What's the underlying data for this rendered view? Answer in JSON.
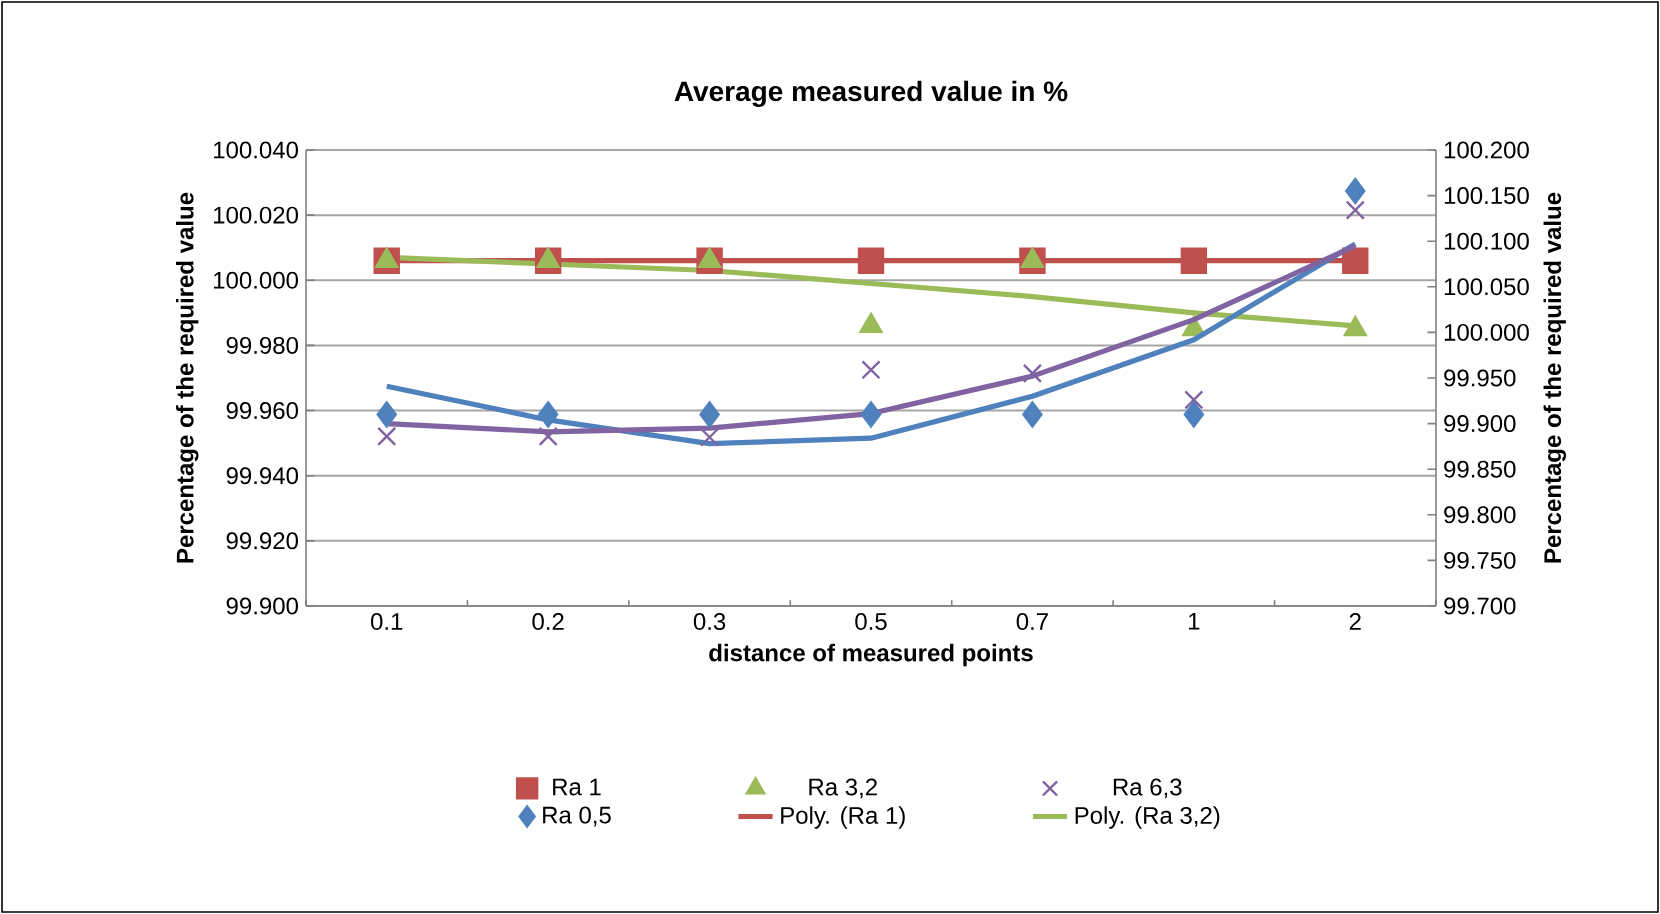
{
  "chart_data": {
    "type": "scatter",
    "title": "Average measured value in %",
    "xlabel": "distance of measured points",
    "ylabel": "Percentage of the required value",
    "y2label": "Percentage of the required value",
    "categories": [
      "0.1",
      "0.2",
      "0.3",
      "0.5",
      "0.7",
      "1",
      "2"
    ],
    "ylim": [
      99.9,
      100.04
    ],
    "yticks": [
      {
        "value": 99.9,
        "label": "99.900"
      },
      {
        "value": 99.92,
        "label": "99.920"
      },
      {
        "value": 99.94,
        "label": "99.940"
      },
      {
        "value": 99.96,
        "label": "99.960"
      },
      {
        "value": 99.98,
        "label": "99.980"
      },
      {
        "value": 100.0,
        "label": "100.000"
      },
      {
        "value": 100.02,
        "label": "100.020"
      },
      {
        "value": 100.04,
        "label": "100.040"
      }
    ],
    "y2lim": [
      99.7,
      100.2
    ],
    "y2ticks": [
      {
        "value": 99.7,
        "label": "99.700"
      },
      {
        "value": 99.75,
        "label": "99.750"
      },
      {
        "value": 99.8,
        "label": "99.800"
      },
      {
        "value": 99.85,
        "label": "99.850"
      },
      {
        "value": 99.9,
        "label": "99.900"
      },
      {
        "value": 99.95,
        "label": "99.950"
      },
      {
        "value": 100.0,
        "label": "100.000"
      },
      {
        "value": 100.05,
        "label": "100.050"
      },
      {
        "value": 100.1,
        "label": "100.100"
      },
      {
        "value": 100.15,
        "label": "100.150"
      },
      {
        "value": 100.2,
        "label": "100.200"
      }
    ],
    "grid": "y",
    "legend": "bottom",
    "series": [
      {
        "name": "Ra 1",
        "marker": "square",
        "color": "#c0504d",
        "values": [
          100.006,
          100.006,
          100.006,
          100.006,
          100.006,
          100.006,
          100.006
        ]
      },
      {
        "name": "Ra 3,2",
        "marker": "triangle",
        "color": "#9bbb59",
        "values": [
          100.006,
          100.006,
          100.006,
          99.986,
          100.006,
          99.985,
          99.985
        ]
      },
      {
        "name": "Ra 6,3",
        "marker": "cross",
        "axis": "y2",
        "color": "#8064a2",
        "values": [
          99.886,
          99.886,
          99.885,
          99.959,
          99.955,
          99.926,
          100.134
        ]
      },
      {
        "name": "Ra 0,5",
        "marker": "diamond",
        "axis": "y2",
        "color": "#4f81bd",
        "values": [
          99.91,
          99.91,
          99.91,
          99.91,
          99.91,
          99.91,
          100.155
        ]
      },
      {
        "name": "Poly. (Ra 1)",
        "type": "line",
        "marker": "none",
        "color": "#c0504d",
        "values": [
          100.006,
          100.006,
          100.006,
          100.006,
          100.006,
          100.006,
          100.006
        ]
      },
      {
        "name": "Poly. (Ra 3,2)",
        "type": "line",
        "marker": "none",
        "color": "#9bbb59",
        "values": [
          100.007,
          100.005,
          100.003,
          99.999,
          99.995,
          99.99,
          99.986
        ]
      },
      {
        "type": "line",
        "marker": "none",
        "axis": "y2",
        "color": "#4f81bd",
        "values": [
          99.941,
          99.904,
          99.878,
          99.884,
          99.93,
          99.992,
          100.097
        ]
      },
      {
        "type": "line",
        "marker": "none",
        "axis": "y2",
        "color": "#8064a2",
        "values": [
          99.9,
          99.891,
          99.895,
          99.911,
          99.952,
          100.014,
          100.095
        ]
      }
    ]
  }
}
